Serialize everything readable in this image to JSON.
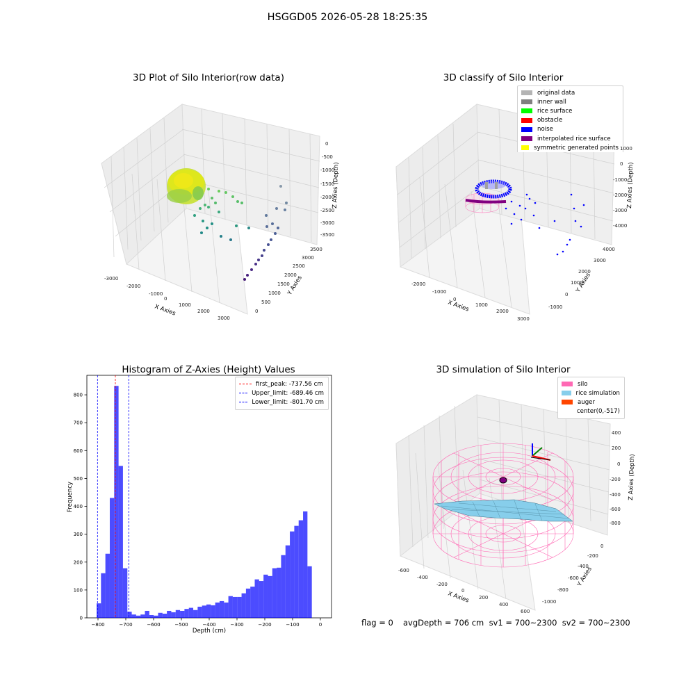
{
  "suptitle": "HSGGD05 2026-05-28 18:25:35",
  "panels": {
    "raw": {
      "title": "3D Plot of Silo Interior(row data)",
      "xlabel": "X Axies",
      "ylabel": "Y Axies",
      "zlabel": "Z Axies (Depth)",
      "xticks": [
        "-3000",
        "-2000",
        "-1000",
        "0",
        "1000",
        "2000",
        "3000"
      ],
      "yticks": [
        "0",
        "500",
        "1000",
        "1500",
        "2000",
        "2500",
        "3000",
        "3500"
      ],
      "zticks": [
        "0",
        "-500",
        "-1000",
        "-1500",
        "-2000",
        "-2500",
        "-3000",
        "-3500"
      ]
    },
    "classify": {
      "title": "3D classify of Silo Interior",
      "xlabel": "X Axies",
      "ylabel": "Y Axies",
      "zlabel": "Z Axies (Depth)",
      "xticks": [
        "-2000",
        "-1000",
        "0",
        "1000",
        "2000",
        "3000"
      ],
      "yticks": [
        "-1000",
        "0",
        "1000",
        "2000",
        "3000",
        "4000"
      ],
      "zticks": [
        "0",
        "-1000",
        "-2000",
        "-3000",
        "-4000"
      ],
      "zticks_hidden_top": "1000",
      "legend": [
        {
          "label": "original data",
          "color": "#b4b4b4"
        },
        {
          "label": "inner wall",
          "color": "#808080"
        },
        {
          "label": "rice surface",
          "color": "#00ff00"
        },
        {
          "label": "obstacle",
          "color": "#ff0000"
        },
        {
          "label": "noise",
          "color": "#0000ff"
        },
        {
          "label": "interpolated rice surface",
          "color": "#800080"
        },
        {
          "label": "symmetric generated points",
          "color": "#ffff00"
        }
      ]
    },
    "hist": {
      "title": "Histogram of Z-Axies (Height) Values",
      "legend": [
        {
          "label": "first_peak: -737.56 cm",
          "color": "#ff0000"
        },
        {
          "label": "Upper_limit: -689.46 cm",
          "color": "#0000ff"
        },
        {
          "label": "Lower_limit: -801.70 cm",
          "color": "#0000ff"
        }
      ]
    },
    "sim": {
      "title": "3D simulation of Silo Interior",
      "xlabel": "X Axies",
      "ylabel": "Y Axies",
      "zlabel": "Z Axies (Depth)",
      "xticks": [
        "-600",
        "-400",
        "-200",
        "0",
        "200",
        "400",
        "600"
      ],
      "yticks": [
        "-1000",
        "-800",
        "-600",
        "-400",
        "-200",
        "0"
      ],
      "zticks": [
        "400",
        "200",
        "0",
        "-200",
        "-400",
        "-600",
        "-800"
      ],
      "legend": [
        {
          "label": "silo",
          "color": "#ff69b4"
        },
        {
          "label": "rice simulation",
          "color": "#87ceeb"
        },
        {
          "label": "auger",
          "color": "#ff4500"
        },
        {
          "label": "center(0,-517)",
          "color": "#ffffff"
        }
      ]
    }
  },
  "status": {
    "flag": "flag = 0",
    "info": "avgDepth = 706 cm  sv1 = 700~2300  sv2 = 700~2300"
  },
  "chart_data": [
    {
      "type": "bar",
      "title": "Histogram of Z-Axies (Height) Values",
      "xlabel": "Depth (cm)",
      "ylabel": "Frequency",
      "xlim": [
        -840,
        40
      ],
      "ylim": [
        0,
        870
      ],
      "xticks": [
        -800,
        -700,
        -600,
        -500,
        -400,
        -300,
        -200,
        -100,
        0
      ],
      "yticks": [
        0,
        100,
        200,
        300,
        400,
        500,
        600,
        700,
        800
      ],
      "bar_color": "#0000ff",
      "bin_edges": [
        -805,
        -789.2,
        -773.4,
        -757.6,
        -741.8,
        -726,
        -710.2,
        -694.4,
        -678.6,
        -662.8,
        -647,
        -631.2,
        -615.4,
        -599.6,
        -583.8,
        -568,
        -552.2,
        -536.4,
        -520.6,
        -504.8,
        -489,
        -473.2,
        -457.4,
        -441.6,
        -425.8,
        -410,
        -394.2,
        -378.4,
        -362.6,
        -346.8,
        -331,
        -315.2,
        -299.4,
        -283.6,
        -267.8,
        -252,
        -236.2,
        -220.4,
        -204.6,
        -188.8,
        -173,
        -157.2,
        -141.4,
        -125.6,
        -109.8,
        -94,
        -78.2,
        -62.4,
        -46.6,
        -30.8,
        -15,
        0
      ],
      "values": [
        52,
        160,
        230,
        430,
        832,
        545,
        178,
        22,
        12,
        8,
        12,
        25,
        10,
        8,
        18,
        15,
        25,
        20,
        28,
        25,
        32,
        36,
        28,
        40,
        44,
        48,
        45,
        55,
        60,
        55,
        78,
        75,
        75,
        88,
        105,
        112,
        138,
        132,
        155,
        150,
        178,
        180,
        225,
        260,
        310,
        330,
        350,
        382,
        185,
        0,
        0
      ],
      "vlines": [
        {
          "label": "first_peak: -737.56 cm",
          "x": -737.56,
          "color": "#ff0000"
        },
        {
          "label": "Upper_limit: -689.46 cm",
          "x": -689.46,
          "color": "#0000ff"
        },
        {
          "label": "Lower_limit: -801.70 cm",
          "x": -801.7,
          "color": "#0000ff"
        }
      ]
    }
  ]
}
